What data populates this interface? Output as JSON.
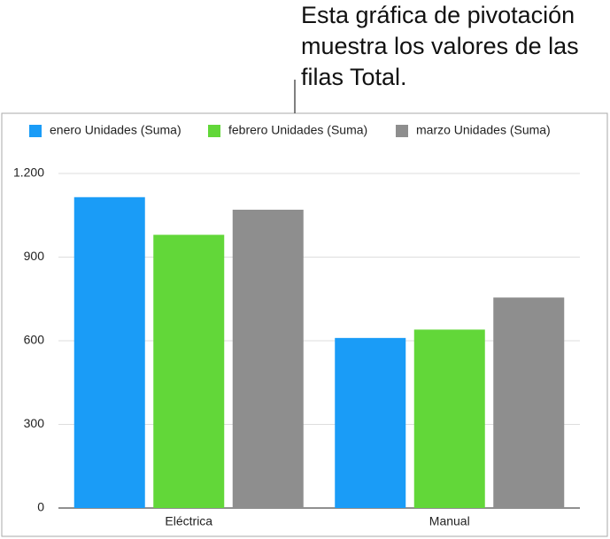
{
  "chart_data": {
    "type": "bar",
    "annotation": [
      "Esta gráfica de pivotación",
      "muestra los valores de las",
      "filas Total."
    ],
    "categories": [
      "Eléctrica",
      "Manual"
    ],
    "series": [
      {
        "name": "enero Unidades (Suma)",
        "color": "#1a9cf7",
        "values": [
          1115,
          610
        ]
      },
      {
        "name": "febrero Unidades (Suma)",
        "color": "#62d739",
        "values": [
          980,
          640
        ]
      },
      {
        "name": "marzo Unidades (Suma)",
        "color": "#8e8e8e",
        "values": [
          1070,
          755
        ]
      }
    ],
    "ylim": [
      0,
      1200
    ],
    "yticks": [
      0,
      300,
      600,
      900,
      {
        "value": 1200,
        "label": "1.200"
      }
    ],
    "grid": true,
    "legend": "top"
  }
}
